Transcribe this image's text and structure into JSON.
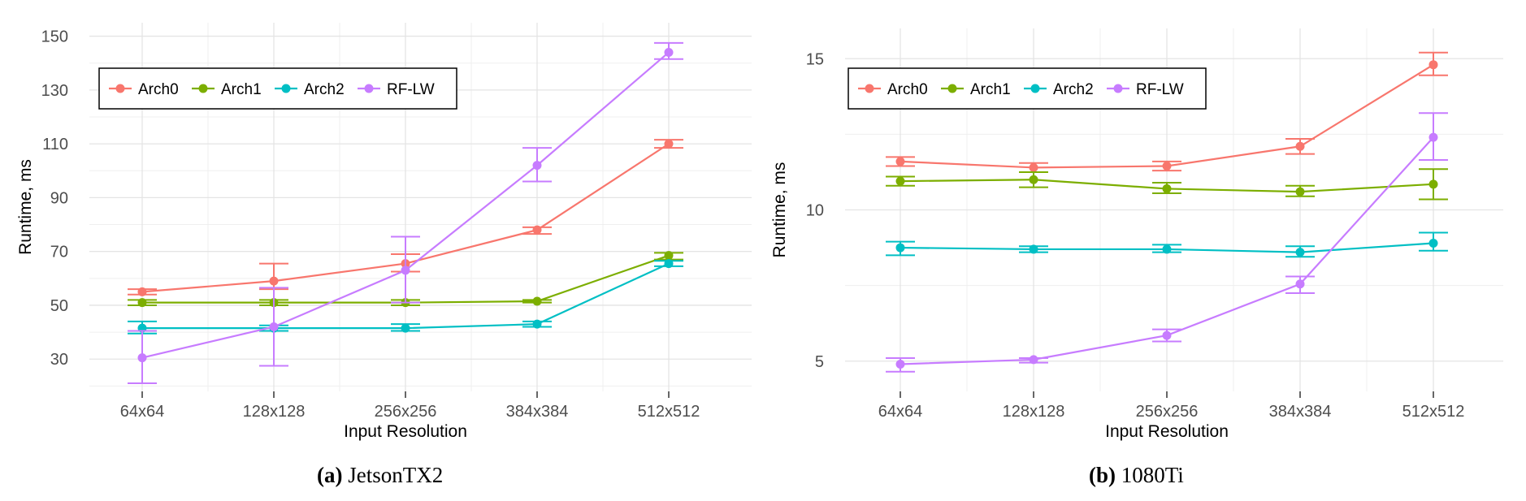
{
  "chart_data": [
    {
      "type": "line",
      "caption_tag": "(a)",
      "caption_text": "JetsonTX2",
      "xlabel": "Input Resolution",
      "ylabel": "Runtime, ms",
      "categories": [
        "64x64",
        "128x128",
        "256x256",
        "384x384",
        "512x512"
      ],
      "ylim": [
        18,
        155
      ],
      "yticks": [
        30,
        50,
        70,
        90,
        110,
        130,
        150
      ],
      "grid": true,
      "legend": "top-left",
      "series": [
        {
          "name": "Arch0",
          "color": "#F8766D",
          "values": [
            55,
            59,
            65.5,
            78,
            110
          ],
          "err_low": [
            54,
            56,
            62.5,
            76.5,
            108.5
          ],
          "err_high": [
            56,
            65.5,
            69,
            79,
            111.5
          ]
        },
        {
          "name": "Arch1",
          "color": "#7CAE00",
          "values": [
            51,
            51,
            51,
            51.5,
            68.5
          ],
          "err_low": [
            50,
            50,
            50,
            51,
            67
          ],
          "err_high": [
            52,
            52,
            52,
            52,
            69.5
          ]
        },
        {
          "name": "Arch2",
          "color": "#00BFC4",
          "values": [
            41.5,
            41.5,
            41.5,
            43,
            65.5
          ],
          "err_low": [
            39.5,
            40.5,
            40.5,
            42,
            64.5
          ],
          "err_high": [
            44,
            42.5,
            43,
            44,
            66.5
          ]
        },
        {
          "name": "RF-LW",
          "color": "#C77CFF",
          "values": [
            30.5,
            42,
            63,
            102,
            144
          ],
          "err_low": [
            21,
            27.5,
            51,
            96,
            141.5
          ],
          "err_high": [
            40.5,
            56.5,
            75.5,
            108.5,
            147.5
          ]
        }
      ]
    },
    {
      "type": "line",
      "caption_tag": "(b)",
      "caption_text": "1080Ti",
      "xlabel": "Input Resolution",
      "ylabel": "Runtime, ms",
      "categories": [
        "64x64",
        "128x128",
        "256x256",
        "384x384",
        "512x512"
      ],
      "ylim": [
        4.0,
        16.0
      ],
      "yticks": [
        5,
        10,
        15
      ],
      "grid": true,
      "legend": "top-left",
      "series": [
        {
          "name": "Arch0",
          "color": "#F8766D",
          "values": [
            11.6,
            11.4,
            11.45,
            12.1,
            14.8
          ],
          "err_low": [
            11.45,
            11.25,
            11.3,
            11.85,
            14.45
          ],
          "err_high": [
            11.75,
            11.55,
            11.6,
            12.35,
            15.2
          ]
        },
        {
          "name": "Arch1",
          "color": "#7CAE00",
          "values": [
            10.95,
            11.0,
            10.7,
            10.6,
            10.85
          ],
          "err_low": [
            10.8,
            10.75,
            10.55,
            10.45,
            10.35
          ],
          "err_high": [
            11.1,
            11.25,
            10.9,
            10.8,
            11.35
          ]
        },
        {
          "name": "Arch2",
          "color": "#00BFC4",
          "values": [
            8.75,
            8.7,
            8.7,
            8.6,
            8.9
          ],
          "err_low": [
            8.5,
            8.6,
            8.6,
            8.45,
            8.65
          ],
          "err_high": [
            8.95,
            8.8,
            8.85,
            8.8,
            9.25
          ]
        },
        {
          "name": "RF-LW",
          "color": "#C77CFF",
          "values": [
            4.9,
            5.05,
            5.85,
            7.55,
            12.4
          ],
          "err_low": [
            4.65,
            4.95,
            5.65,
            7.25,
            11.65
          ],
          "err_high": [
            5.1,
            5.1,
            6.05,
            7.8,
            13.2
          ]
        }
      ]
    }
  ]
}
